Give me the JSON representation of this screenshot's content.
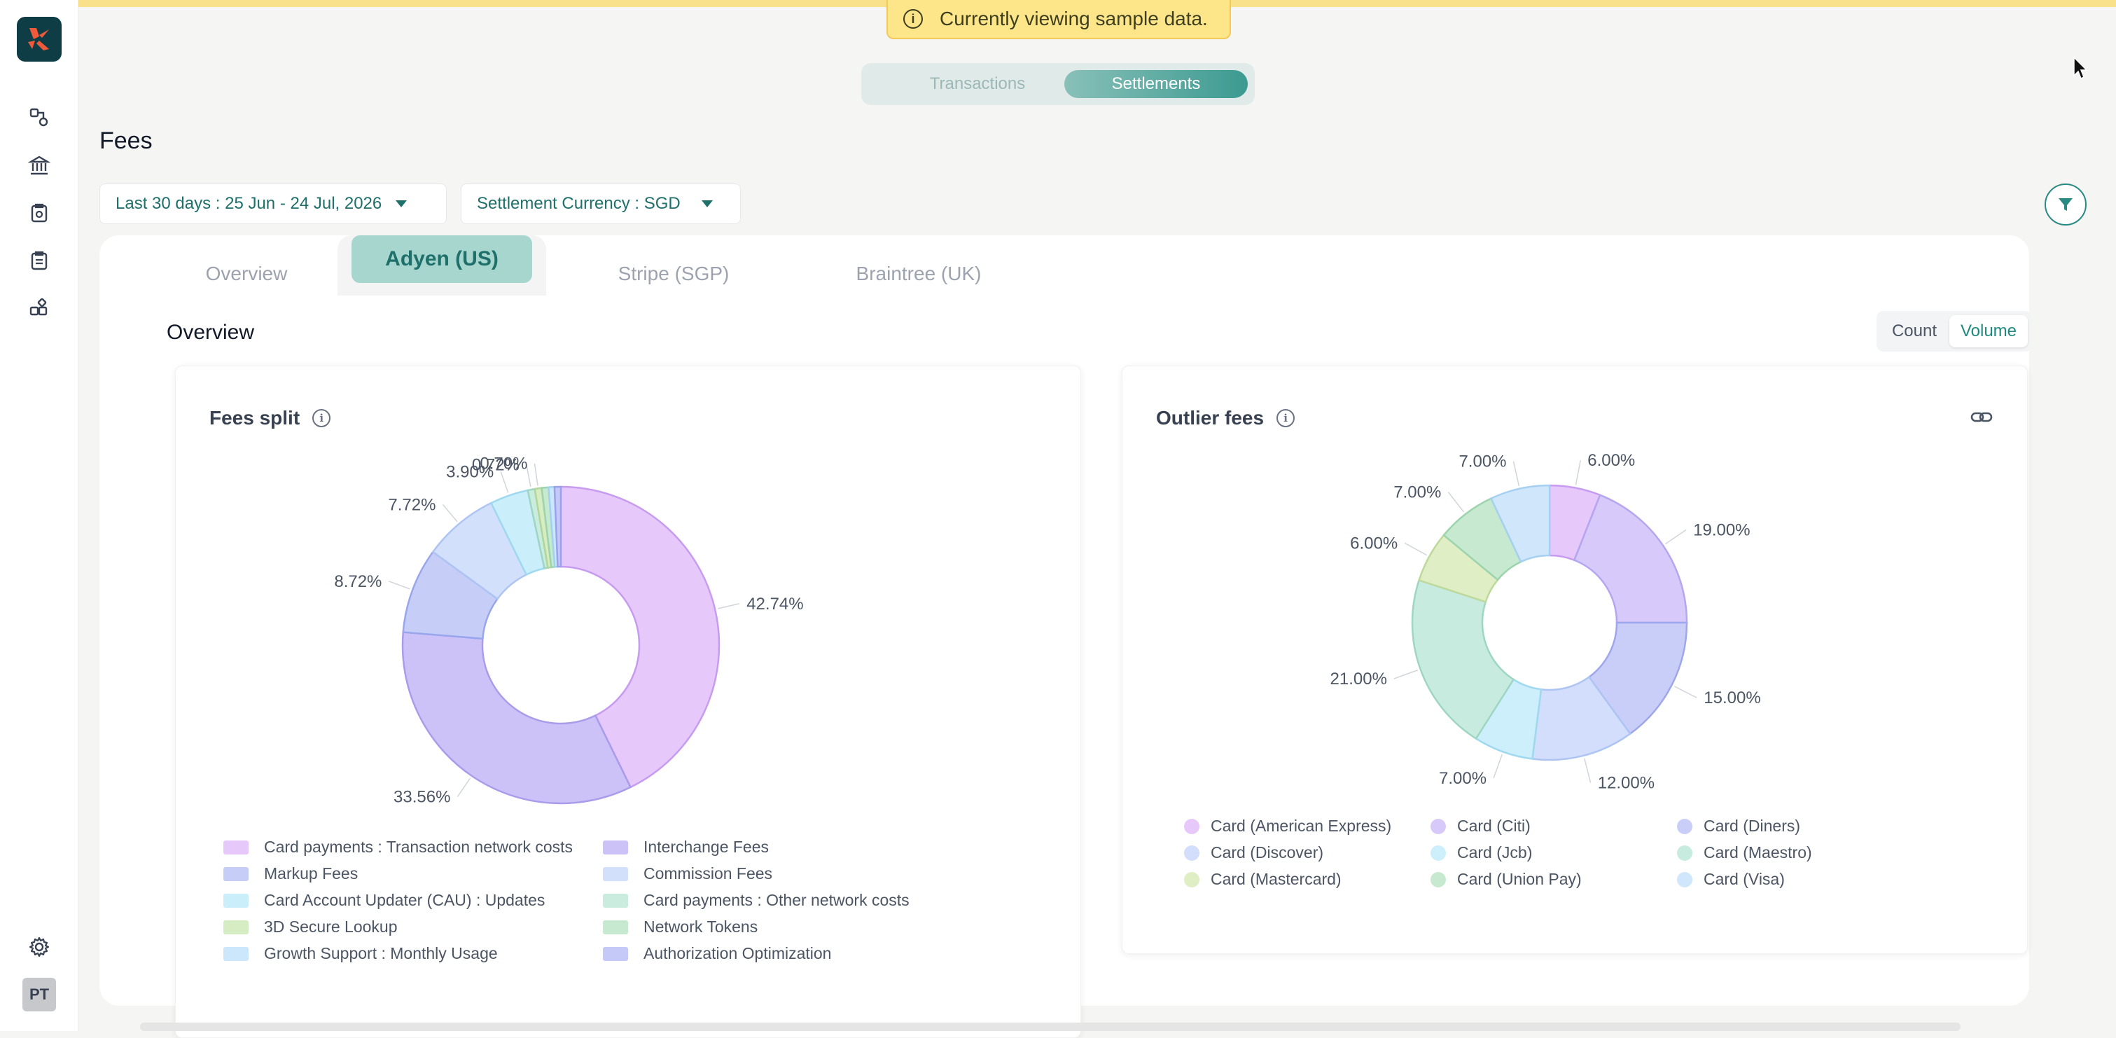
{
  "banner": {
    "notice": "Currently viewing sample data."
  },
  "toggle": {
    "items": [
      "Transactions",
      "Settlements"
    ],
    "active": "Settlements"
  },
  "page": {
    "title": "Fees"
  },
  "filters": {
    "date_range": "Last 30 days :  25 Jun - 24 Jul, 2026",
    "currency": "Settlement Currency : SGD"
  },
  "tabs": [
    "Overview",
    "Adyen (US)",
    "Stripe (SGP)",
    "Braintree (UK)"
  ],
  "active_tab": "Adyen (US)",
  "section": {
    "title": "Overview"
  },
  "metric_toggle": {
    "count": "Count",
    "volume": "Volume",
    "active": "Volume"
  },
  "sidebar": {
    "icons": [
      "connections-icon",
      "bank-icon",
      "reconciliation-icon",
      "clipboard-icon",
      "apps-icon"
    ],
    "settings_icon": "gear-icon",
    "avatar": "PT"
  },
  "colors": {
    "accent": "#1f8a80",
    "brand": "#0f3d45",
    "banner": "#fde68a"
  },
  "fees_split": {
    "title": "Fees split",
    "legend": [
      "Card payments : Transaction network costs",
      "Interchange Fees",
      "Markup Fees",
      "Commission Fees",
      "Card Account Updater (CAU) : Updates",
      "Card payments : Other network costs",
      "3D Secure Lookup",
      "Network Tokens",
      "Growth Support : Monthly Usage",
      "Authorization Optimization"
    ]
  },
  "outlier_fees": {
    "title": "Outlier fees",
    "legend": [
      "Card (American Express)",
      "Card (Citi)",
      "Card (Diners)",
      "Card (Discover)",
      "Card (Jcb)",
      "Card (Maestro)",
      "Card (Mastercard)",
      "Card (Union Pay)",
      "Card (Visa)"
    ]
  },
  "chart_data": [
    {
      "type": "pie",
      "title": "Fees split",
      "categories": [
        "Card payments : Transaction network costs",
        "Interchange Fees",
        "Markup Fees",
        "Commission Fees",
        "Card Account Updater (CAU) : Updates",
        "Card payments : Other network costs",
        "3D Secure Lookup",
        "Network Tokens",
        "Growth Support : Monthly Usage",
        "Authorization Optimization"
      ],
      "values": [
        42.74,
        33.56,
        8.72,
        7.72,
        3.9,
        0.72,
        0.7,
        0.7,
        0.6,
        0.64
      ],
      "labels": [
        "42.74%",
        "33.56%",
        "8.72%",
        "7.72%",
        "3.90%",
        "0.72%",
        "0.70%",
        "",
        "",
        ""
      ],
      "colors": [
        "#e6c8fb",
        "#cdc2f8",
        "#c6cef8",
        "#d3e0fb",
        "#cbeefb",
        "#c9ecdf",
        "#d6ecc2",
        "#c6e9cf",
        "#cce7fb",
        "#c5c9f7"
      ],
      "strokes": [
        "#c69bf0",
        "#a99ceb",
        "#9aa6ec",
        "#aec4f2",
        "#9ed9ef",
        "#9ed6c3",
        "#b2d699",
        "#9dd3ad",
        "#a2d2f2",
        "#9ba2ec"
      ]
    },
    {
      "type": "pie",
      "title": "Outlier fees",
      "categories": [
        "Card (American Express)",
        "Card (Citi)",
        "Card (Diners)",
        "Card (Discover)",
        "Card (Jcb)",
        "Card (Maestro)",
        "Card (Mastercard)",
        "Card (Union Pay)",
        "Card (Visa)"
      ],
      "values": [
        6,
        19,
        15,
        12,
        7,
        21,
        6,
        7,
        7
      ],
      "labels": [
        "6.00%",
        "19.00%",
        "15.00%",
        "12.00%",
        "7.00%",
        "21.00%",
        "6.00%",
        "7.00%",
        "7.00%"
      ],
      "colors": [
        "#e6c8fb",
        "#d7c9f9",
        "#c9cef8",
        "#d2defb",
        "#cdeefb",
        "#c7ecdf",
        "#dfeec4",
        "#c6e9cf",
        "#d0e6fb"
      ],
      "strokes": [
        "#c69bf0",
        "#b5a6f0",
        "#9ea6ec",
        "#aec4f2",
        "#9ed9ef",
        "#9ed6c3",
        "#bdd99b",
        "#9dd3ad",
        "#a5d0f2"
      ]
    }
  ]
}
